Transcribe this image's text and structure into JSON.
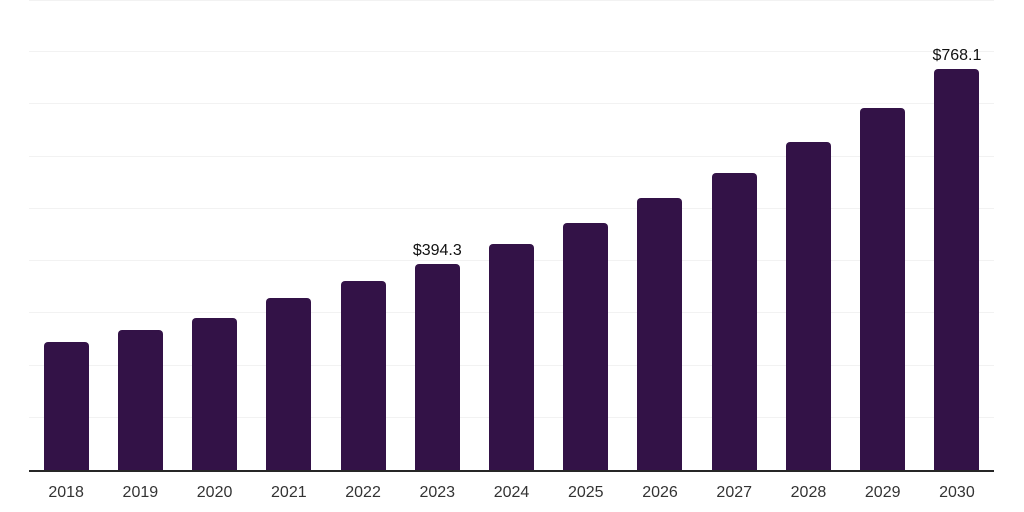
{
  "chart_data": {
    "type": "bar",
    "title": "",
    "xlabel": "",
    "ylabel": "",
    "categories": [
      "2018",
      "2019",
      "2020",
      "2021",
      "2022",
      "2023",
      "2024",
      "2025",
      "2026",
      "2027",
      "2028",
      "2029",
      "2030"
    ],
    "values": [
      245.4,
      268.9,
      290.6,
      329.4,
      362.4,
      394.3,
      433.8,
      473.1,
      521.6,
      569.4,
      628.6,
      692.8,
      768.1
    ],
    "data_labels": [
      "",
      "",
      "",
      "",
      "",
      "$394.3",
      "",
      "",
      "",
      "",
      "",
      "",
      "$768.1"
    ],
    "ylim": [
      0,
      900
    ],
    "gridline_step": 100,
    "grid": "horizontal",
    "legend": "none",
    "colors": {
      "bar": "#331247",
      "axis_line": "#262626",
      "gridline": "#f2f2f2",
      "tick_label": "#333333",
      "data_label": "#111111",
      "background": "#ffffff"
    }
  }
}
